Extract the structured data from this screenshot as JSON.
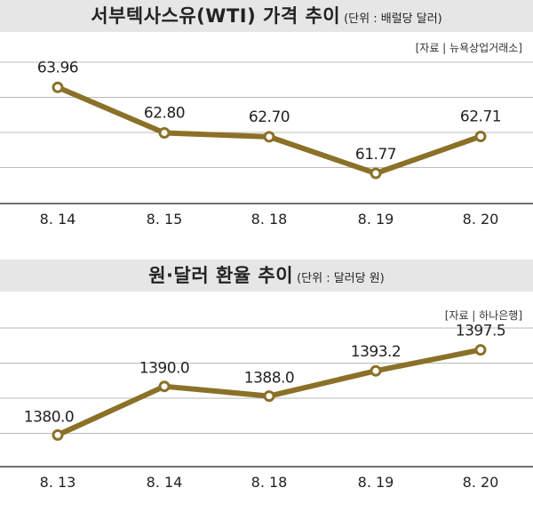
{
  "chart_data": [
    {
      "type": "line",
      "title": "서부텍사스유(WTI) 가격 추이",
      "unit": "(단위 : 배럴당 달러)",
      "source": "[자료 | 뉴욕상업거래소]",
      "categories": [
        "8. 14",
        "8. 15",
        "8. 18",
        "8. 19",
        "8. 20"
      ],
      "values": [
        63.96,
        62.8,
        62.7,
        61.77,
        62.71
      ],
      "labels": [
        "63.96",
        "62.80",
        "62.70",
        "61.77",
        "62.71"
      ],
      "ylim": [
        61.0,
        64.6
      ],
      "grid": true,
      "color": "#8b7128"
    },
    {
      "type": "line",
      "title": "원·달러 환율 추이",
      "unit": "(단위 : 달러당 원)",
      "source": "[자료 | 하나은행]",
      "categories": [
        "8. 13",
        "8. 14",
        "8. 18",
        "8. 19",
        "8. 20"
      ],
      "values": [
        1380.0,
        1390.0,
        1388.0,
        1393.2,
        1397.5
      ],
      "labels": [
        "1380.0",
        "1390.0",
        "1388.0",
        "1393.2",
        "1397.5"
      ],
      "ylim": [
        1373.5,
        1402
      ],
      "grid": true,
      "color": "#8b7128"
    }
  ]
}
